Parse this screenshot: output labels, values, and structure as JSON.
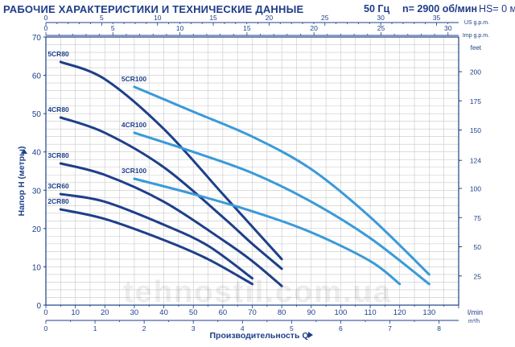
{
  "header": {
    "title": "РАБОЧИЕ ХАРАКТЕРИСТИКИ И ТЕХНИЧЕСКИЕ ДАННЫЕ",
    "frequency": "50 Гц",
    "speed": "n= 2900 об/мин",
    "hs": "HS= 0 м"
  },
  "watermark": "tehnostil.com.ua",
  "chart_data": {
    "type": "line",
    "title": "",
    "ylabel": "Напор H (метры)",
    "xlabel": "Производительность Q",
    "ylim": [
      0,
      70
    ],
    "xlim_lmin": [
      0,
      140
    ],
    "axes": {
      "left_unit": "",
      "right_unit": "feet",
      "right_ticks": [
        25,
        50,
        75,
        100,
        124,
        150,
        175,
        200
      ],
      "top_us_unit": "US g.p.m.",
      "top_us_ticks": [
        0,
        5,
        10,
        15,
        20,
        25,
        30,
        35
      ],
      "top_imp_unit": "Imp g.p.m.",
      "top_imp_ticks": [
        0,
        5,
        10,
        15,
        20,
        25,
        30
      ],
      "bottom_lmin_unit": "l/min",
      "bottom_lmin_ticks": [
        0,
        10,
        20,
        30,
        40,
        50,
        60,
        70,
        80,
        90,
        100,
        110,
        120,
        130
      ],
      "bottom_m3h_unit": "m³/h",
      "bottom_m3h_ticks": [
        0,
        1,
        2,
        3,
        4,
        5,
        6,
        7,
        8
      ],
      "left_ticks": [
        0,
        10,
        20,
        30,
        40,
        50,
        60,
        70
      ]
    },
    "grid": true,
    "series": [
      {
        "name": "5CR80",
        "color": "#1e3f8a",
        "x": [
          5,
          20,
          40,
          60,
          70,
          80
        ],
        "y": [
          63.5,
          59,
          46,
          29,
          20.5,
          12
        ]
      },
      {
        "name": "4CR80",
        "color": "#1e3f8a",
        "x": [
          5,
          20,
          40,
          60,
          70,
          80
        ],
        "y": [
          49,
          45,
          36,
          23,
          16,
          9.5
        ]
      },
      {
        "name": "3CR80",
        "color": "#1e3f8a",
        "x": [
          5,
          20,
          40,
          60,
          70,
          80
        ],
        "y": [
          37,
          34,
          27,
          17,
          11.5,
          5
        ]
      },
      {
        "name": "3CR60",
        "color": "#1e3f8a",
        "x": [
          5,
          20,
          40,
          55,
          70
        ],
        "y": [
          29,
          27,
          21,
          15.5,
          7
        ]
      },
      {
        "name": "2CR80",
        "color": "#1e3f8a",
        "x": [
          5,
          20,
          40,
          55,
          70
        ],
        "y": [
          25,
          22.5,
          17,
          12,
          5.5
        ]
      },
      {
        "name": "5CR100",
        "color": "#3a9ad9",
        "x": [
          30,
          50,
          70,
          90,
          110,
          130
        ],
        "y": [
          57,
          50.5,
          44,
          35.5,
          23,
          8
        ]
      },
      {
        "name": "4CR100",
        "color": "#3a9ad9",
        "x": [
          30,
          50,
          70,
          90,
          110,
          130
        ],
        "y": [
          45,
          40,
          34.5,
          27,
          17.5,
          5.5
        ]
      },
      {
        "name": "3CR100",
        "color": "#3a9ad9",
        "x": [
          30,
          50,
          70,
          90,
          110,
          120
        ],
        "y": [
          33,
          29,
          24.5,
          19,
          11.5,
          5.5
        ]
      }
    ]
  }
}
